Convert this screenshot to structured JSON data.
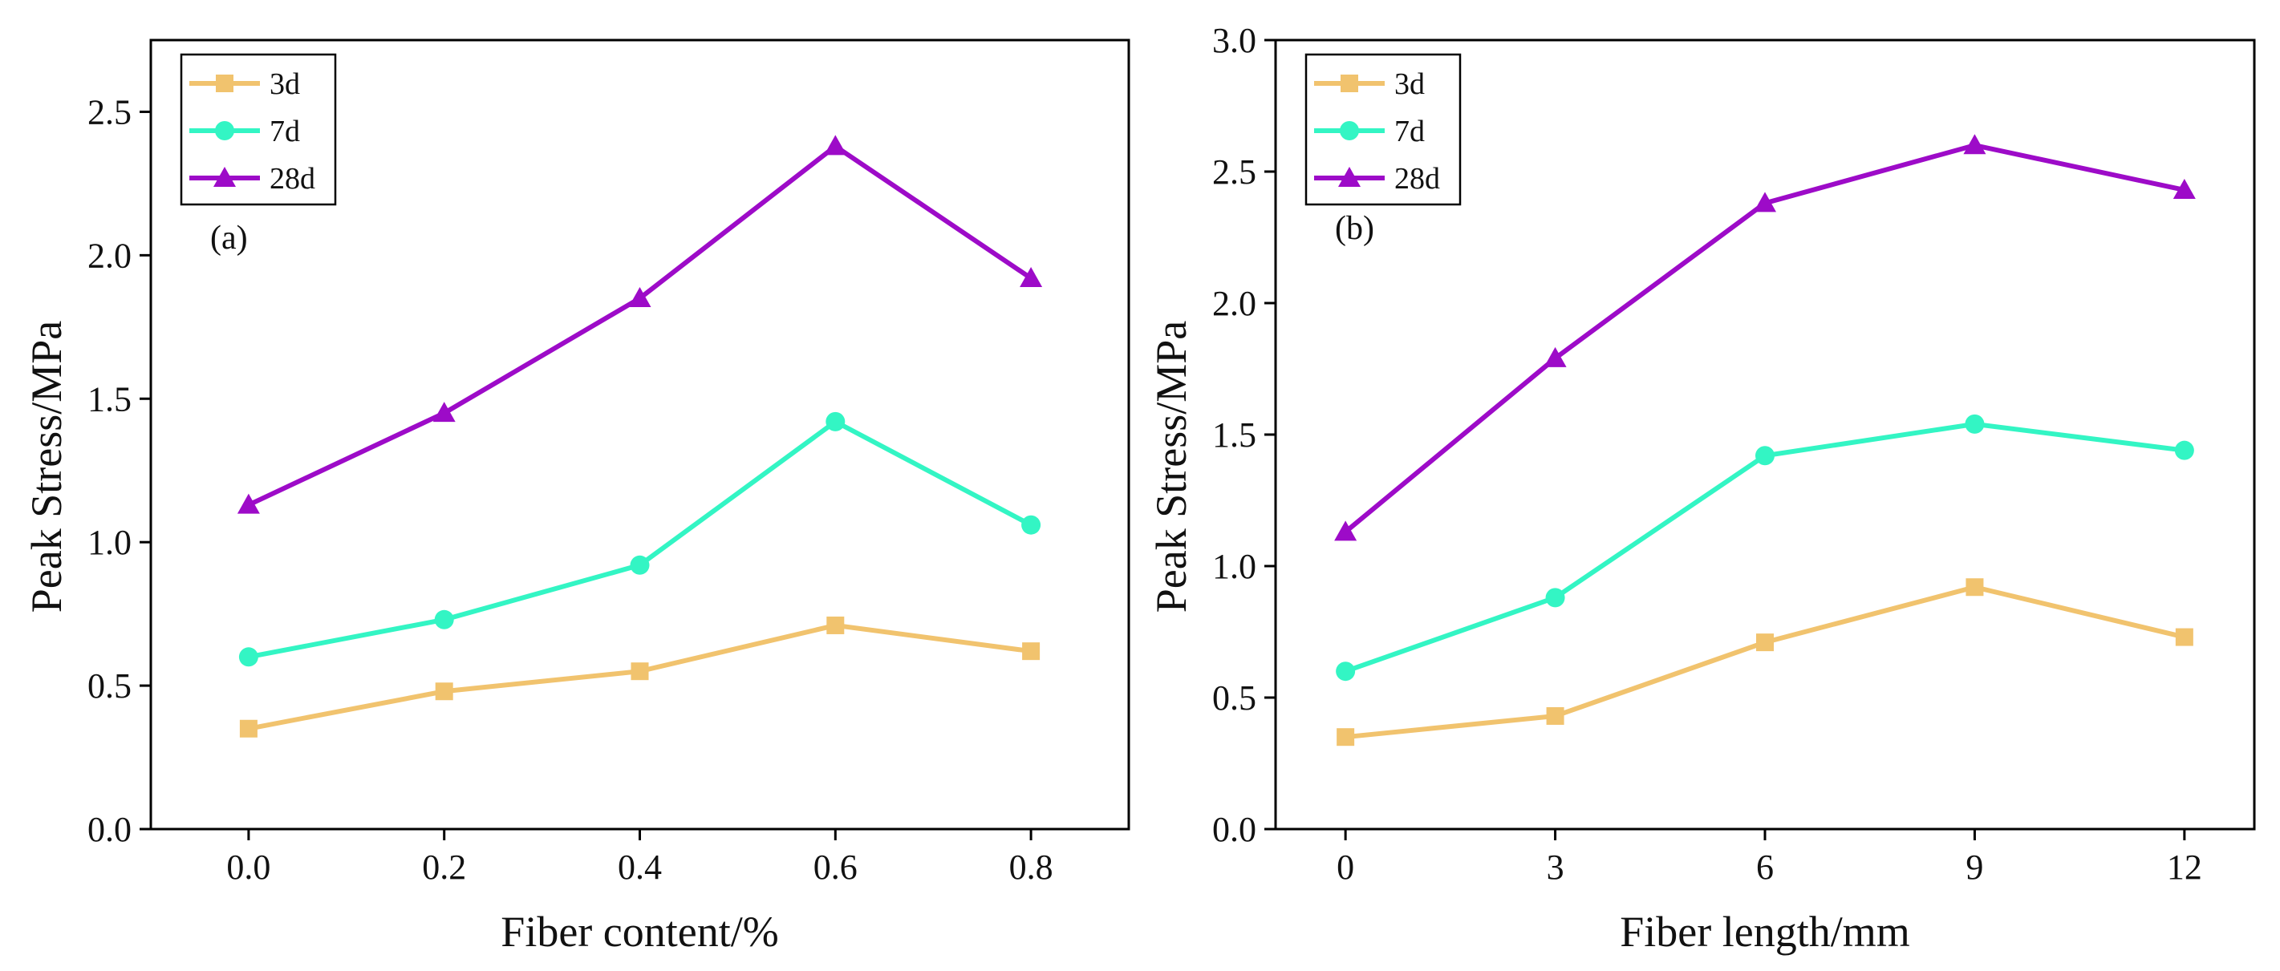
{
  "colors": {
    "3d": "#F1C36E",
    "7d": "#33F5C4",
    "28d": "#9D0BC8"
  },
  "chart_data": [
    {
      "type": "line",
      "panel_label": "(a)",
      "xlabel": "Fiber content/%",
      "ylabel": "Peak Stress/MPa",
      "x": [
        0.0,
        0.2,
        0.4,
        0.6,
        0.8
      ],
      "x_tick_labels": [
        "0.0",
        "0.2",
        "0.4",
        "0.6",
        "0.8"
      ],
      "xlim": [
        -0.1,
        0.9
      ],
      "ylim": [
        0.0,
        2.75
      ],
      "y_ticks": [
        0.0,
        0.5,
        1.0,
        1.5,
        2.0,
        2.5
      ],
      "y_tick_labels": [
        "0.0",
        "0.5",
        "1.0",
        "1.5",
        "2.0",
        "2.5"
      ],
      "legend_position": "top-left",
      "grid": false,
      "series": [
        {
          "name": "3d",
          "marker": "square",
          "values": [
            0.35,
            0.48,
            0.55,
            0.71,
            0.62
          ]
        },
        {
          "name": "7d",
          "marker": "circle",
          "values": [
            0.6,
            0.73,
            0.92,
            1.42,
            1.06
          ]
        },
        {
          "name": "28d",
          "marker": "triangle",
          "values": [
            1.13,
            1.45,
            1.85,
            2.38,
            1.92
          ]
        }
      ]
    },
    {
      "type": "line",
      "panel_label": "(b)",
      "xlabel": "Fiber length/mm",
      "ylabel": "Peak Stress/MPa",
      "x": [
        0,
        3,
        6,
        9,
        12
      ],
      "x_tick_labels": [
        "0",
        "3",
        "6",
        "9",
        "12"
      ],
      "xlim": [
        -1,
        13
      ],
      "ylim": [
        0.0,
        3.0
      ],
      "y_ticks": [
        0.0,
        0.5,
        1.0,
        1.5,
        2.0,
        2.5,
        3.0
      ],
      "y_tick_labels": [
        "0.0",
        "0.5",
        "1.0",
        "1.5",
        "2.0",
        "2.5",
        "3.0"
      ],
      "legend_position": "top-left",
      "grid": false,
      "series": [
        {
          "name": "3d",
          "marker": "square",
          "values": [
            0.35,
            0.43,
            0.71,
            0.92,
            0.73
          ]
        },
        {
          "name": "7d",
          "marker": "circle",
          "values": [
            0.6,
            0.88,
            1.42,
            1.54,
            1.44
          ]
        },
        {
          "name": "28d",
          "marker": "triangle",
          "values": [
            1.13,
            1.79,
            2.38,
            2.6,
            2.43
          ]
        }
      ]
    }
  ]
}
